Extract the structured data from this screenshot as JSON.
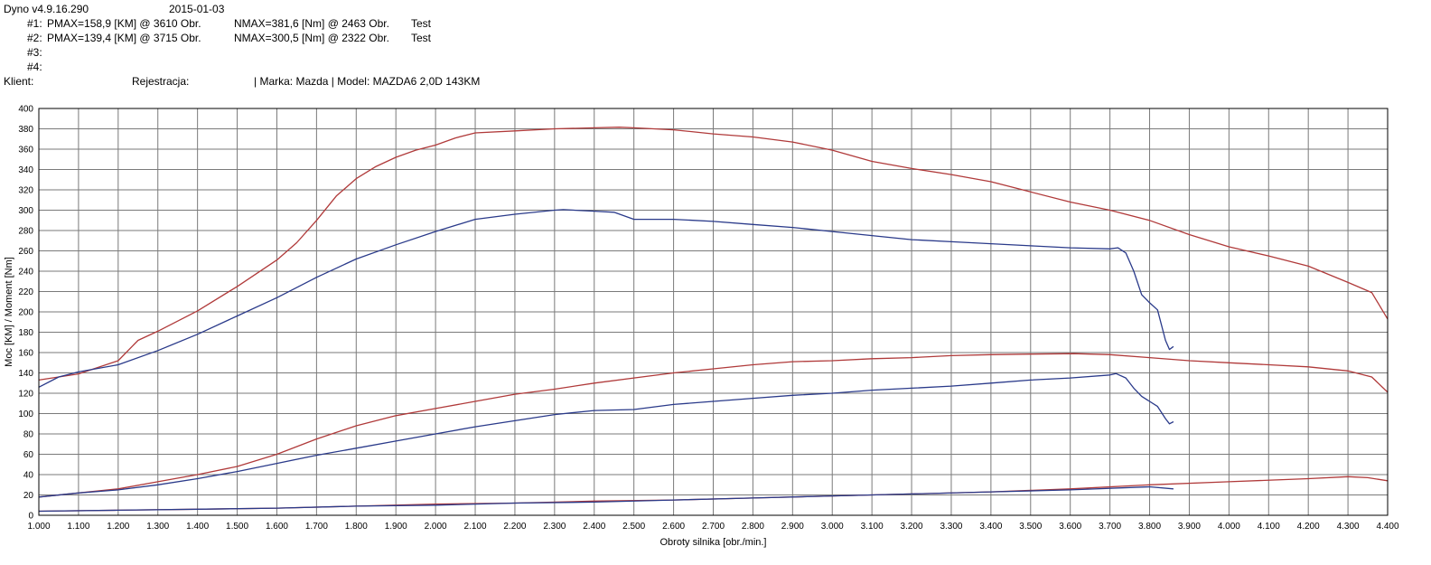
{
  "header": {
    "app_version": "Dyno v4.9.16.290",
    "date": "2015-01-03",
    "runs": [
      {
        "id": "#1:",
        "pmax": "PMAX=158,9 [KM] @ 3610 Obr.",
        "nmax": "NMAX=381,6 [Nm] @ 2463 Obr.",
        "tag": "Test"
      },
      {
        "id": "#2:",
        "pmax": "PMAX=139,4 [KM] @ 3715 Obr.",
        "nmax": "NMAX=300,5 [Nm] @ 2322 Obr.",
        "tag": "Test"
      },
      {
        "id": "#3:",
        "pmax": "",
        "nmax": "",
        "tag": ""
      },
      {
        "id": "#4:",
        "pmax": "",
        "nmax": "",
        "tag": ""
      }
    ],
    "client_label": "Klient:",
    "registration_label": "Rejestracja:",
    "vehicle": "| Marka: Mazda | Model: MAZDA6 2,0D 143KM"
  },
  "chart_data": {
    "type": "line",
    "xlabel": "Obroty silnika [obr./min.]",
    "ylabel": "Moc [KM] / Moment [Nm]",
    "xlim": [
      1000,
      4400
    ],
    "ylim": [
      0,
      400
    ],
    "x_ticks": [
      "1.000",
      "1.100",
      "1.200",
      "1.300",
      "1.400",
      "1.500",
      "1.600",
      "1.700",
      "1.800",
      "1.900",
      "2.000",
      "2.100",
      "2.200",
      "2.300",
      "2.400",
      "2.500",
      "2.600",
      "2.700",
      "2.800",
      "2.900",
      "3.000",
      "3.100",
      "3.200",
      "3.300",
      "3.400",
      "3.500",
      "3.600",
      "3.700",
      "3.800",
      "3.900",
      "4.000",
      "4.100",
      "4.200",
      "4.300",
      "4.400"
    ],
    "y_ticks": [
      "0",
      "20",
      "40",
      "60",
      "80",
      "100",
      "120",
      "140",
      "160",
      "180",
      "200",
      "220",
      "240",
      "260",
      "280",
      "300",
      "320",
      "340",
      "360",
      "380",
      "400"
    ],
    "grid": true,
    "series": [
      {
        "color": "#b03a3a",
        "x": [
          1000,
          1100,
          1200,
          1250,
          1300,
          1400,
          1500,
          1600,
          1650,
          1700,
          1750,
          1800,
          1850,
          1900,
          1950,
          2000,
          2050,
          2100,
          2200,
          2300,
          2400,
          2463,
          2500,
          2600,
          2700,
          2800,
          2900,
          3000,
          3100,
          3200,
          3300,
          3400,
          3500,
          3600,
          3700,
          3800,
          3900,
          4000,
          4100,
          4200,
          4300,
          4360,
          4400
        ],
        "values": [
          133,
          139,
          152,
          172,
          181,
          201,
          225,
          251,
          268,
          290,
          314,
          331,
          343,
          352,
          359,
          364,
          371,
          376,
          378,
          380,
          381,
          381.6,
          381,
          379,
          375,
          372,
          367,
          359,
          348,
          341,
          335,
          328,
          318,
          308,
          300,
          290,
          276,
          264,
          255,
          245,
          229,
          219,
          193
        ]
      },
      {
        "color": "#2a3a8a",
        "x": [
          1000,
          1050,
          1100,
          1200,
          1300,
          1400,
          1500,
          1600,
          1700,
          1800,
          1900,
          2000,
          2100,
          2200,
          2300,
          2322,
          2400,
          2450,
          2500,
          2600,
          2700,
          2800,
          2900,
          3000,
          3100,
          3200,
          3300,
          3400,
          3500,
          3600,
          3700,
          3720,
          3740,
          3760,
          3780,
          3800,
          3820,
          3840,
          3850,
          3860
        ],
        "values": [
          126,
          136,
          141,
          148,
          162,
          178,
          196,
          214,
          234,
          252,
          266,
          279,
          291,
          296,
          300,
          300.5,
          299,
          298,
          291,
          291,
          289,
          286,
          283,
          279,
          275,
          271,
          269,
          267,
          265,
          263,
          262,
          263,
          258,
          240,
          217,
          209,
          202,
          172,
          163,
          166
        ]
      },
      {
        "color": "#b03a3a",
        "x": [
          1000,
          1100,
          1200,
          1300,
          1400,
          1500,
          1600,
          1700,
          1800,
          1900,
          2000,
          2100,
          2200,
          2300,
          2400,
          2500,
          2600,
          2700,
          2800,
          2900,
          3000,
          3100,
          3200,
          3300,
          3400,
          3500,
          3610,
          3700,
          3800,
          3900,
          4000,
          4100,
          4200,
          4300,
          4360,
          4400
        ],
        "values": [
          18,
          22,
          26,
          33,
          40,
          48,
          60,
          75,
          88,
          98,
          105,
          112,
          119,
          124,
          130,
          135,
          140,
          144,
          148,
          151,
          152,
          154,
          155,
          157,
          158,
          158.5,
          158.9,
          158,
          155,
          152,
          150,
          148,
          146,
          142,
          136,
          121
        ]
      },
      {
        "color": "#2a3a8a",
        "x": [
          1000,
          1100,
          1200,
          1300,
          1400,
          1500,
          1600,
          1700,
          1800,
          1900,
          2000,
          2100,
          2200,
          2300,
          2400,
          2500,
          2600,
          2700,
          2800,
          2900,
          3000,
          3100,
          3200,
          3300,
          3400,
          3500,
          3600,
          3700,
          3715,
          3740,
          3760,
          3780,
          3800,
          3820,
          3840,
          3850,
          3860
        ],
        "values": [
          18,
          22,
          25,
          30,
          36,
          43,
          51,
          59,
          66,
          73,
          80,
          87,
          93,
          99,
          103,
          104,
          109,
          112,
          115,
          118,
          120,
          123,
          125,
          127,
          130,
          133,
          135,
          138,
          139.4,
          135,
          125,
          117,
          112,
          107,
          95,
          90,
          92
        ]
      },
      {
        "color": "#b03a3a",
        "x": [
          1000,
          1200,
          1400,
          1600,
          1800,
          2000,
          2200,
          2400,
          2600,
          2800,
          3000,
          3200,
          3400,
          3600,
          3800,
          4000,
          4200,
          4300,
          4350,
          4400
        ],
        "values": [
          4,
          5,
          6,
          7,
          9,
          11,
          12,
          14,
          15,
          17,
          19,
          21,
          23,
          26,
          30,
          33,
          36,
          38,
          37,
          34
        ]
      },
      {
        "color": "#2a3a8a",
        "x": [
          1000,
          1200,
          1400,
          1600,
          1800,
          2000,
          2200,
          2400,
          2600,
          2800,
          3000,
          3200,
          3400,
          3600,
          3800,
          3860
        ],
        "values": [
          4,
          5,
          6,
          7,
          9,
          10,
          12,
          13,
          15,
          17,
          19,
          21,
          23,
          25,
          28,
          26
        ]
      }
    ]
  }
}
